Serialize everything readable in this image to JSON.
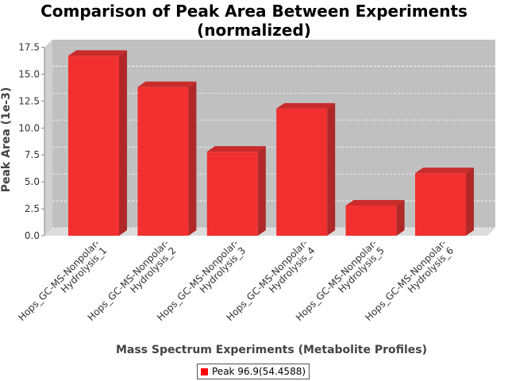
{
  "chart_data": {
    "type": "bar",
    "title_line1": "Comparison of Peak Area Between Experiments",
    "title_line2": "(normalized)",
    "xlabel": "Mass Spectrum Experiments (Metabolite Profiles)",
    "ylabel": "Peak Area (1e-3)",
    "categories": [
      [
        "Hops_GC-MS-Nonpolar-",
        "Hydrolysis_1"
      ],
      [
        "Hops_GC-MS-Nonpolar-",
        "Hydrolysis_2"
      ],
      [
        "Hops_GC-MS-Nonpolar-",
        "Hydrolysis_3"
      ],
      [
        "Hops_GC-MS-Nonpolar-",
        "Hydrolysis_4"
      ],
      [
        "Hops_GC-MS-Nonpolar-",
        "Hydrolysis_5"
      ],
      [
        "Hops_GC-MS-Nonpolar-",
        "Hydrolysis_6"
      ]
    ],
    "series": [
      {
        "name": "Peak 96.9(54.4588)",
        "values": [
          16.7,
          13.8,
          7.8,
          11.8,
          2.8,
          5.8
        ]
      }
    ],
    "yticks": [
      "0.0",
      "2.5",
      "5.0",
      "7.5",
      "10.0",
      "12.5",
      "15.0",
      "17.5"
    ],
    "ylim": [
      0,
      18.2
    ],
    "grid": true,
    "legend_position": "bottom",
    "colors": {
      "bar": "#ff0000",
      "plot_background": "#c0c0c0",
      "grid": "#ffffff"
    }
  }
}
